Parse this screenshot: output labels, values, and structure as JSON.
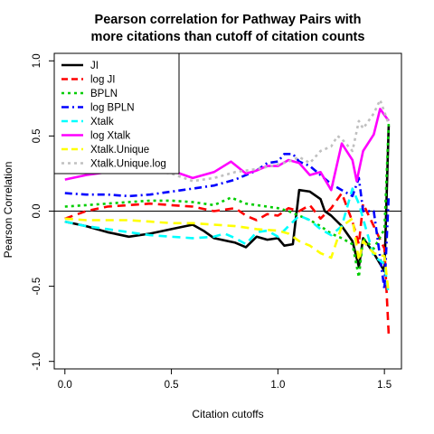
{
  "chart_data": {
    "type": "line",
    "title": [
      "Pearson correlation for Pathway Pairs with",
      "more citations than cutoff of citation counts"
    ],
    "xlabel": "Citation cutoffs",
    "ylabel": "Pearson Correlation",
    "xlim": [
      -0.05,
      1.58
    ],
    "ylim": [
      -1.05,
      1.05
    ],
    "x_ticks": [
      0.0,
      0.5,
      1.0,
      1.5
    ],
    "x_tick_labels": [
      "0.0",
      "0.5",
      "1.0",
      "1.5"
    ],
    "y_ticks": [
      -1.0,
      -0.5,
      0.0,
      0.5,
      1.0
    ],
    "y_tick_labels": [
      "-1.0",
      "-0.5",
      "0.0",
      "0.5",
      "1.0"
    ],
    "reference_line": 0,
    "legend_position": "top-left",
    "series": [
      {
        "name": "JI",
        "color": "#000000",
        "dash": "solid",
        "points": [
          [
            0,
            -0.07
          ],
          [
            0.1,
            -0.1
          ],
          [
            0.2,
            -0.14
          ],
          [
            0.3,
            -0.17
          ],
          [
            0.4,
            -0.15
          ],
          [
            0.5,
            -0.12
          ],
          [
            0.6,
            -0.09
          ],
          [
            0.65,
            -0.13
          ],
          [
            0.7,
            -0.18
          ],
          [
            0.8,
            -0.21
          ],
          [
            0.85,
            -0.24
          ],
          [
            0.9,
            -0.17
          ],
          [
            0.95,
            -0.19
          ],
          [
            1.0,
            -0.18
          ],
          [
            1.03,
            -0.23
          ],
          [
            1.07,
            -0.22
          ],
          [
            1.1,
            0.14
          ],
          [
            1.15,
            0.13
          ],
          [
            1.2,
            0.08
          ],
          [
            1.22,
            0.0
          ],
          [
            1.25,
            -0.03
          ],
          [
            1.3,
            -0.1
          ],
          [
            1.35,
            -0.2
          ],
          [
            1.38,
            -0.37
          ],
          [
            1.4,
            -0.18
          ],
          [
            1.45,
            -0.28
          ],
          [
            1.5,
            -0.4
          ],
          [
            1.52,
            0.57
          ]
        ]
      },
      {
        "name": "log JI",
        "color": "#ff0000",
        "dash": "long",
        "points": [
          [
            0,
            -0.05
          ],
          [
            0.1,
            0.0
          ],
          [
            0.2,
            0.03
          ],
          [
            0.3,
            0.04
          ],
          [
            0.4,
            0.05
          ],
          [
            0.5,
            0.04
          ],
          [
            0.6,
            0.03
          ],
          [
            0.7,
            0.0
          ],
          [
            0.8,
            0.02
          ],
          [
            0.85,
            -0.03
          ],
          [
            0.9,
            -0.06
          ],
          [
            0.95,
            -0.02
          ],
          [
            1.0,
            -0.03
          ],
          [
            1.05,
            0.02
          ],
          [
            1.1,
            0.0
          ],
          [
            1.15,
            0.04
          ],
          [
            1.2,
            -0.05
          ],
          [
            1.25,
            0.02
          ],
          [
            1.3,
            0.12
          ],
          [
            1.35,
            -0.07
          ],
          [
            1.38,
            -0.22
          ],
          [
            1.4,
            0.05
          ],
          [
            1.45,
            -0.1
          ],
          [
            1.5,
            -0.25
          ],
          [
            1.52,
            -0.82
          ]
        ]
      },
      {
        "name": "BPLN",
        "color": "#00cd00",
        "dash": "dot",
        "points": [
          [
            0,
            0.03
          ],
          [
            0.1,
            0.04
          ],
          [
            0.2,
            0.05
          ],
          [
            0.3,
            0.06
          ],
          [
            0.4,
            0.07
          ],
          [
            0.5,
            0.07
          ],
          [
            0.6,
            0.06
          ],
          [
            0.7,
            0.04
          ],
          [
            0.78,
            0.09
          ],
          [
            0.85,
            0.05
          ],
          [
            0.95,
            0.03
          ],
          [
            1.0,
            0.02
          ],
          [
            1.05,
            0.0
          ],
          [
            1.1,
            -0.03
          ],
          [
            1.15,
            -0.06
          ],
          [
            1.2,
            -0.1
          ],
          [
            1.25,
            -0.15
          ],
          [
            1.3,
            -0.18
          ],
          [
            1.35,
            -0.22
          ],
          [
            1.38,
            -0.44
          ],
          [
            1.4,
            -0.18
          ],
          [
            1.45,
            -0.25
          ],
          [
            1.5,
            -0.12
          ],
          [
            1.52,
            0.58
          ]
        ]
      },
      {
        "name": "log BPLN",
        "color": "#0000ff",
        "dash": "dashdot",
        "points": [
          [
            0,
            0.12
          ],
          [
            0.1,
            0.11
          ],
          [
            0.2,
            0.11
          ],
          [
            0.3,
            0.1
          ],
          [
            0.4,
            0.11
          ],
          [
            0.5,
            0.13
          ],
          [
            0.6,
            0.15
          ],
          [
            0.7,
            0.17
          ],
          [
            0.8,
            0.21
          ],
          [
            0.9,
            0.27
          ],
          [
            0.95,
            0.32
          ],
          [
            1.0,
            0.33
          ],
          [
            1.03,
            0.38
          ],
          [
            1.07,
            0.38
          ],
          [
            1.1,
            0.33
          ],
          [
            1.15,
            0.3
          ],
          [
            1.2,
            0.24
          ],
          [
            1.25,
            0.18
          ],
          [
            1.3,
            0.14
          ],
          [
            1.35,
            0.1
          ],
          [
            1.38,
            0.22
          ],
          [
            1.4,
            0.0
          ],
          [
            1.45,
            0.0
          ],
          [
            1.5,
            -0.52
          ],
          [
            1.52,
            0.1
          ]
        ]
      },
      {
        "name": "Xtalk",
        "color": "#00ffff",
        "dash": "long",
        "points": [
          [
            0,
            -0.07
          ],
          [
            0.1,
            -0.1
          ],
          [
            0.2,
            -0.12
          ],
          [
            0.3,
            -0.14
          ],
          [
            0.4,
            -0.16
          ],
          [
            0.5,
            -0.17
          ],
          [
            0.6,
            -0.18
          ],
          [
            0.7,
            -0.17
          ],
          [
            0.75,
            -0.15
          ],
          [
            0.8,
            -0.18
          ],
          [
            0.85,
            -0.22
          ],
          [
            0.9,
            -0.14
          ],
          [
            0.95,
            -0.13
          ],
          [
            1.0,
            -0.17
          ],
          [
            1.05,
            -0.1
          ],
          [
            1.1,
            -0.03
          ],
          [
            1.15,
            -0.06
          ],
          [
            1.2,
            -0.12
          ],
          [
            1.25,
            -0.16
          ],
          [
            1.3,
            -0.1
          ],
          [
            1.35,
            0.15
          ],
          [
            1.38,
            0.05
          ],
          [
            1.4,
            -0.05
          ],
          [
            1.45,
            -0.3
          ],
          [
            1.5,
            -0.35
          ],
          [
            1.52,
            -0.56
          ]
        ]
      },
      {
        "name": "log Xtalk",
        "color": "#ff00ff",
        "dash": "solid",
        "points": [
          [
            0,
            0.21
          ],
          [
            0.1,
            0.24
          ],
          [
            0.2,
            0.26
          ],
          [
            0.3,
            0.27
          ],
          [
            0.4,
            0.28
          ],
          [
            0.5,
            0.27
          ],
          [
            0.6,
            0.22
          ],
          [
            0.7,
            0.26
          ],
          [
            0.78,
            0.33
          ],
          [
            0.85,
            0.25
          ],
          [
            0.9,
            0.27
          ],
          [
            0.95,
            0.3
          ],
          [
            1.0,
            0.3
          ],
          [
            1.05,
            0.34
          ],
          [
            1.1,
            0.32
          ],
          [
            1.15,
            0.24
          ],
          [
            1.2,
            0.26
          ],
          [
            1.25,
            0.14
          ],
          [
            1.3,
            0.45
          ],
          [
            1.35,
            0.34
          ],
          [
            1.37,
            0.2
          ],
          [
            1.4,
            0.4
          ],
          [
            1.45,
            0.51
          ],
          [
            1.48,
            0.68
          ],
          [
            1.52,
            0.6
          ]
        ]
      },
      {
        "name": "Xtalk.Unique",
        "color": "#ffff00",
        "dash": "long",
        "points": [
          [
            0,
            -0.05
          ],
          [
            0.1,
            -0.06
          ],
          [
            0.2,
            -0.06
          ],
          [
            0.3,
            -0.06
          ],
          [
            0.4,
            -0.07
          ],
          [
            0.5,
            -0.08
          ],
          [
            0.6,
            -0.08
          ],
          [
            0.7,
            -0.09
          ],
          [
            0.8,
            -0.1
          ],
          [
            0.9,
            -0.12
          ],
          [
            1.0,
            -0.13
          ],
          [
            1.05,
            -0.15
          ],
          [
            1.1,
            -0.2
          ],
          [
            1.15,
            -0.23
          ],
          [
            1.2,
            -0.28
          ],
          [
            1.25,
            -0.31
          ],
          [
            1.3,
            -0.1
          ],
          [
            1.35,
            -0.05
          ],
          [
            1.38,
            -0.33
          ],
          [
            1.4,
            -0.2
          ],
          [
            1.45,
            -0.28
          ],
          [
            1.5,
            -0.3
          ],
          [
            1.52,
            -0.55
          ]
        ]
      },
      {
        "name": "Xtalk.Unique.log",
        "color": "#c0c0c0",
        "dash": "dot",
        "points": [
          [
            0,
            0.26
          ],
          [
            0.1,
            0.27
          ],
          [
            0.2,
            0.28
          ],
          [
            0.3,
            0.28
          ],
          [
            0.4,
            0.27
          ],
          [
            0.5,
            0.25
          ],
          [
            0.6,
            0.2
          ],
          [
            0.7,
            0.22
          ],
          [
            0.8,
            0.26
          ],
          [
            0.9,
            0.28
          ],
          [
            1.0,
            0.31
          ],
          [
            1.05,
            0.33
          ],
          [
            1.1,
            0.36
          ],
          [
            1.15,
            0.32
          ],
          [
            1.2,
            0.4
          ],
          [
            1.25,
            0.43
          ],
          [
            1.28,
            0.5
          ],
          [
            1.3,
            0.48
          ],
          [
            1.35,
            0.4
          ],
          [
            1.38,
            0.6
          ],
          [
            1.4,
            0.55
          ],
          [
            1.45,
            0.65
          ],
          [
            1.48,
            0.74
          ],
          [
            1.52,
            0.58
          ]
        ]
      }
    ]
  }
}
